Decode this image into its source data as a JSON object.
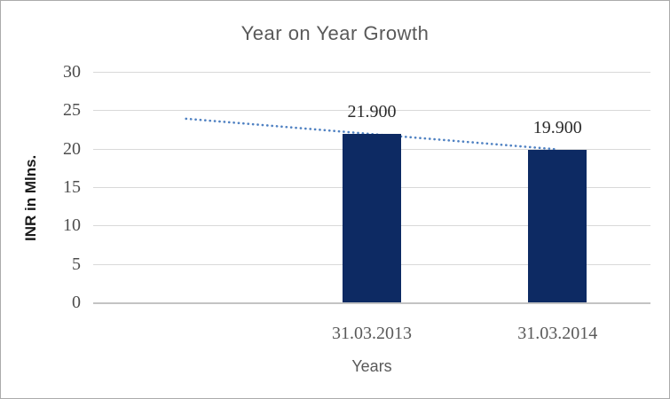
{
  "chart_data": {
    "type": "bar",
    "title": "Year on Year Growth",
    "ylabel": "INR in Mlns.",
    "xlabel": "Years",
    "categories": [
      "31.03.2013",
      "31.03.2014"
    ],
    "values": [
      21.9,
      19.9
    ],
    "data_labels": [
      "21.900",
      "19.900"
    ],
    "yticks": [
      0,
      5,
      10,
      15,
      20,
      25,
      30
    ],
    "ylim": [
      0,
      30
    ],
    "grid": "horizontal",
    "legend": "none",
    "category_slots": 3,
    "category_slot_indexes": [
      2,
      3
    ],
    "trendline": {
      "style": "dotted",
      "points": [
        {
          "slot": 1,
          "value": 23.9
        },
        {
          "slot": 3,
          "value": 19.9
        }
      ]
    },
    "colors": {
      "bar": "#0d2a63",
      "trendline": "#4f81c2",
      "gridline": "#d9d9d9",
      "axis_line": "#c3c3c3",
      "title_text": "#595959",
      "tick_text": "#4d4d4d",
      "data_label_text": "#2b2b2b",
      "category_text": "#595959",
      "axis_title_text": "#595959",
      "y_axis_title_text": "#1a1a1a"
    }
  }
}
